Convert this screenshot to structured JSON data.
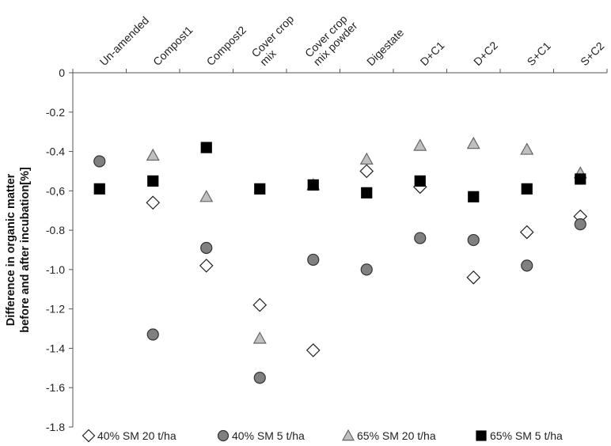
{
  "chart_data": {
    "type": "scatter",
    "categories": [
      "Un-amended",
      "Compost1",
      "Compost2",
      "Cover crop mix",
      "Cover crop mix powder",
      "Digestate",
      "D+C1",
      "D+C2",
      "S+C1",
      "S+C2"
    ],
    "category_lines": [
      [
        "Un-amended"
      ],
      [
        "Compost1"
      ],
      [
        "Compost2"
      ],
      [
        "Cover crop",
        "mix"
      ],
      [
        "Cover crop",
        "mix powder"
      ],
      [
        "Digestate"
      ],
      [
        "D+C1"
      ],
      [
        "D+C2"
      ],
      [
        "S+C1"
      ],
      [
        "S+C2"
      ]
    ],
    "ylabel_lines": [
      "Difference in organic matter",
      "before and after incubation[%]"
    ],
    "ylim": [
      -1.8,
      0
    ],
    "yticks": [
      0,
      -0.2,
      -0.4,
      -0.6,
      -0.8,
      -1.0,
      -1.2,
      -1.4,
      -1.6,
      -1.8
    ],
    "ytick_labels": [
      "0",
      "-0.2",
      "-0.4",
      "-0,6",
      "-0.8",
      "-1.0",
      "-1.2",
      "-1.4",
      "-1.6",
      "-1.8"
    ],
    "legend_position": "bottom",
    "series": [
      {
        "name": "40% SM 20 t/ha",
        "marker": "diamond",
        "fill": "#ffffff",
        "stroke": "#222222",
        "values": [
          null,
          -0.66,
          -0.98,
          -1.18,
          -1.41,
          -0.5,
          -0.58,
          -1.04,
          -0.81,
          -0.73
        ]
      },
      {
        "name": "40% SM 5 t/ha",
        "marker": "circle",
        "fill": "#808080",
        "stroke": "#333333",
        "values": [
          -0.45,
          -1.33,
          -0.89,
          -1.55,
          -0.95,
          -1.0,
          -0.84,
          -0.85,
          -0.98,
          -0.77
        ]
      },
      {
        "name": "65% SM 20 t/ha",
        "marker": "triangle",
        "fill": "#c0c0c0",
        "stroke": "#666666",
        "values": [
          null,
          -0.42,
          -0.63,
          -1.35,
          -0.57,
          -0.44,
          -0.37,
          -0.36,
          -0.39,
          -0.51
        ]
      },
      {
        "name": "65% SM 5 t/ha",
        "marker": "square",
        "fill": "#000000",
        "stroke": "#000000",
        "values": [
          -0.59,
          -0.55,
          -0.38,
          -0.59,
          -0.57,
          -0.61,
          -0.55,
          -0.63,
          -0.59,
          -0.54
        ]
      }
    ]
  }
}
